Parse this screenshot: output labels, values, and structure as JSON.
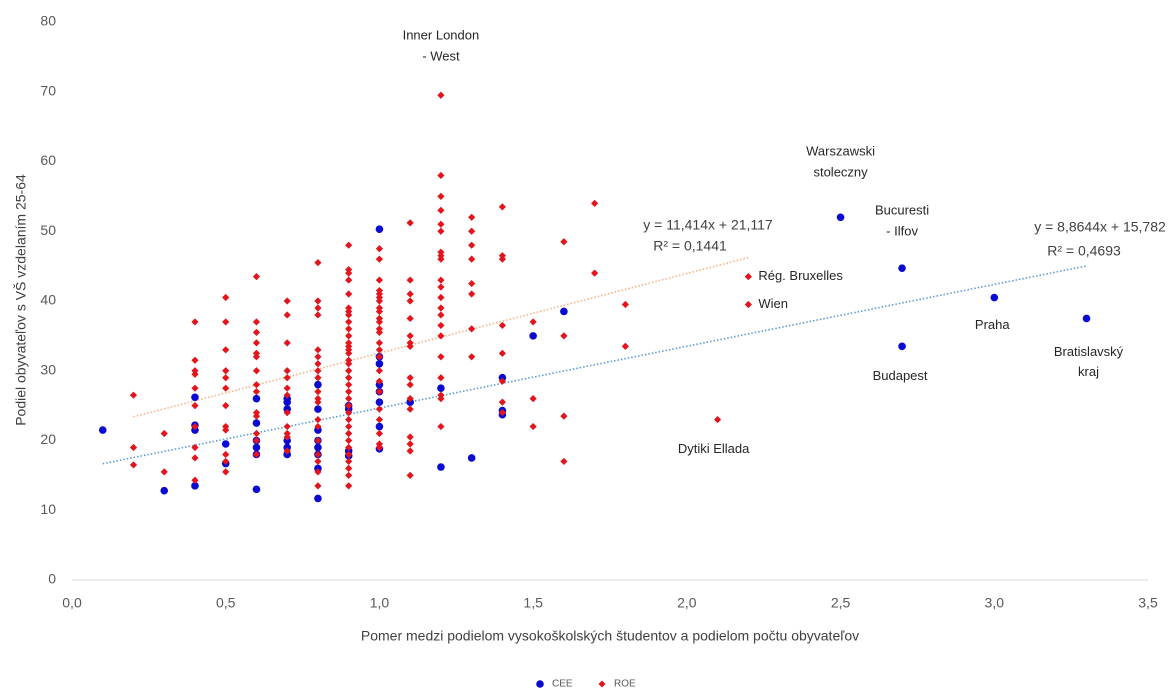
{
  "chart_data": {
    "type": "scatter",
    "x_label": "Pomer medzi podielom vysokoškolských študentov a podielom počtu obyvateľov",
    "y_label": "Podiel obyvateľov s VŠ vzdelaním 25-64",
    "xlim": [
      0,
      3.5
    ],
    "xticks": [
      {
        "value": 0,
        "label": "0,0"
      },
      {
        "value": 0.5,
        "label": "0,5"
      },
      {
        "value": 1,
        "label": "1,0"
      },
      {
        "value": 1.5,
        "label": "1,5"
      },
      {
        "value": 2,
        "label": "2,0"
      },
      {
        "value": 2.5,
        "label": "2,5"
      },
      {
        "value": 3,
        "label": "3,0"
      },
      {
        "value": 3.5,
        "label": "3,5"
      }
    ],
    "ylim": [
      0,
      80
    ],
    "yticks": [
      0,
      10,
      20,
      30,
      40,
      50,
      60,
      70,
      80
    ],
    "grid": false,
    "legend": "bottom",
    "series": [
      {
        "name": "CEE",
        "color": "#0a0ad2",
        "marker": "circle",
        "x": [
          0.1,
          0.3,
          0.4,
          0.4,
          0.4,
          0.4,
          0.5,
          0.5,
          0.6,
          0.6,
          0.6,
          0.6,
          0.6,
          0.6,
          0.7,
          0.7,
          0.7,
          0.7,
          0.7,
          0.7,
          0.8,
          0.8,
          0.8,
          0.8,
          0.8,
          0.8,
          0.8,
          0.8,
          0.9,
          0.9,
          0.9,
          0.9,
          1.0,
          1.0,
          1.0,
          1.0,
          1.0,
          1.0,
          1.0,
          1.0,
          1.1,
          1.2,
          1.2,
          1.3,
          1.4,
          1.4,
          1.4,
          1.5,
          1.6,
          2.5,
          2.7,
          2.7,
          3.0,
          3.3
        ],
        "values": [
          21.5,
          12.8,
          13.5,
          21.5,
          22.2,
          26.2,
          16.7,
          19.5,
          13,
          18,
          19,
          20,
          22.5,
          26,
          18,
          19,
          20,
          24.5,
          25.5,
          26,
          11.7,
          16,
          18,
          19,
          20,
          21.5,
          24.5,
          28,
          17.8,
          18.5,
          24.5,
          25,
          18.8,
          22,
          25.5,
          27,
          28,
          31,
          32,
          50.3,
          25.5,
          16.2,
          27.5,
          17.5,
          23.7,
          24.3,
          29,
          35,
          38.5,
          52,
          44.7,
          33.5,
          40.5,
          37.5
        ]
      },
      {
        "name": "ROE",
        "color": "#e3141c",
        "marker": "diamond",
        "x": [
          0.2,
          0.2,
          0.2,
          0.3,
          0.3,
          0.4,
          0.4,
          0.4,
          0.4,
          0.4,
          0.4,
          0.4,
          0.4,
          0.4,
          0.4,
          0.5,
          0.5,
          0.5,
          0.5,
          0.5,
          0.5,
          0.5,
          0.5,
          0.5,
          0.5,
          0.5,
          0.5,
          0.6,
          0.6,
          0.6,
          0.6,
          0.6,
          0.6,
          0.6,
          0.6,
          0.6,
          0.6,
          0.6,
          0.6,
          0.6,
          0.6,
          0.7,
          0.7,
          0.7,
          0.7,
          0.7,
          0.7,
          0.7,
          0.7,
          0.7,
          0.7,
          0.7,
          0.7,
          0.8,
          0.8,
          0.8,
          0.8,
          0.8,
          0.8,
          0.8,
          0.8,
          0.8,
          0.8,
          0.8,
          0.8,
          0.8,
          0.8,
          0.8,
          0.8,
          0.8,
          0.8,
          0.8,
          0.9,
          0.9,
          0.9,
          0.9,
          0.9,
          0.9,
          0.9,
          0.9,
          0.9,
          0.9,
          0.9,
          0.9,
          0.9,
          0.9,
          0.9,
          0.9,
          0.9,
          0.9,
          0.9,
          0.9,
          0.9,
          0.9,
          0.9,
          0.9,
          0.9,
          0.9,
          0.9,
          0.9,
          0.9,
          0.9,
          0.9,
          0.9,
          0.9,
          0.9,
          1.0,
          1.0,
          1.0,
          1.0,
          1.0,
          1.0,
          1.0,
          1.0,
          1.0,
          1.0,
          1.0,
          1.0,
          1.0,
          1.0,
          1.0,
          1.0,
          1.0,
          1.0,
          1.0,
          1.0,
          1.0,
          1.0,
          1.0,
          1.0,
          1.1,
          1.1,
          1.1,
          1.1,
          1.1,
          1.1,
          1.1,
          1.1,
          1.1,
          1.1,
          1.1,
          1.1,
          1.1,
          1.1,
          1.1,
          1.1,
          1.2,
          1.2,
          1.2,
          1.2,
          1.2,
          1.2,
          1.2,
          1.2,
          1.2,
          1.2,
          1.2,
          1.2,
          1.2,
          1.2,
          1.2,
          1.2,
          1.2,
          1.2,
          1.2,
          1.2,
          1.2,
          1.3,
          1.3,
          1.3,
          1.3,
          1.3,
          1.3,
          1.3,
          1.3,
          1.4,
          1.4,
          1.4,
          1.4,
          1.4,
          1.4,
          1.4,
          1.4,
          1.5,
          1.5,
          1.5,
          1.6,
          1.6,
          1.6,
          1.6,
          1.7,
          1.7,
          1.8,
          1.8,
          2.1,
          2.2,
          2.2
        ],
        "values": [
          26.5,
          19,
          16.5,
          21,
          15.5,
          37,
          31.5,
          30,
          29.5,
          27.5,
          25,
          22,
          19,
          17.5,
          14.3,
          40.5,
          37,
          33,
          30,
          29,
          27.5,
          25,
          22,
          21.5,
          18,
          17,
          15.5,
          43.5,
          37,
          35.5,
          34,
          32.5,
          32,
          30,
          28,
          27,
          24,
          23.5,
          21,
          20,
          18,
          40,
          38,
          34,
          30,
          29,
          27.5,
          26.5,
          24,
          22,
          21,
          20.5,
          18.5,
          45.5,
          40,
          39,
          38,
          33,
          32,
          31,
          30,
          29,
          27,
          26,
          25.5,
          23,
          22,
          20,
          18,
          17,
          15.5,
          13.5,
          48,
          44.5,
          44,
          43,
          41,
          39,
          38.5,
          38,
          37,
          36,
          35,
          34,
          33.5,
          33,
          32.5,
          31.5,
          31,
          30,
          29,
          28,
          27,
          26,
          25,
          24,
          23,
          22,
          21,
          20,
          19,
          18,
          17,
          16,
          15,
          13.5,
          47.5,
          46,
          43,
          41.5,
          41,
          40.5,
          40,
          39,
          38.5,
          37.5,
          37,
          36,
          35.5,
          34,
          33,
          32,
          30,
          28.5,
          27,
          24.5,
          23,
          21,
          19.5,
          19,
          51.2,
          43,
          41,
          40,
          37.5,
          35,
          34,
          33.5,
          29,
          28,
          26,
          24.5,
          20.5,
          19.5,
          18.5,
          15,
          69.5,
          58,
          55,
          53,
          51,
          50,
          47,
          46.5,
          46,
          43,
          42,
          40.5,
          39,
          38,
          36.5,
          35,
          32,
          29,
          26.5,
          26,
          22,
          52,
          50,
          48,
          46,
          42.5,
          41,
          36,
          32,
          53.5,
          46.5,
          46,
          36.5,
          32.5,
          28.5,
          25.5,
          24,
          37,
          26,
          22,
          48.5,
          35,
          23.5,
          17,
          54,
          44,
          39.5,
          33.5,
          23,
          43.5,
          39.5
        ]
      }
    ],
    "trendlines": [
      {
        "series": "ROE",
        "color": "#f4b183",
        "slope": 11.414,
        "intercept": 21.117,
        "x_range": [
          0.2,
          2.2
        ],
        "equation": "y = 11,414x + 21,117",
        "r2": "R² = 0,1441"
      },
      {
        "series": "CEE",
        "color": "#5b9bd5",
        "slope": 8.8644,
        "intercept": 15.782,
        "x_range": [
          0.1,
          3.3
        ],
        "equation": "y = 8,8644x + 15,782",
        "r2": "R² = 0,4693"
      }
    ],
    "annotations": [
      {
        "text": [
          "Inner London",
          "- West"
        ],
        "x": 1.2,
        "y": 69.5
      },
      {
        "text": [
          "Warszawski",
          "stoleczny"
        ],
        "x": 2.5,
        "y": 52
      },
      {
        "text": [
          "Bucuresti",
          "- Ilfov"
        ],
        "x": 2.7,
        "y": 44.7
      },
      {
        "text": [
          "Rég. Bruxelles"
        ],
        "x": 2.2,
        "y": 43.5
      },
      {
        "text": [
          "Wien"
        ],
        "x": 2.2,
        "y": 39.5
      },
      {
        "text": [
          "Dytiki Ellada"
        ],
        "x": 2.1,
        "y": 23
      },
      {
        "text": [
          "Praha"
        ],
        "x": 3.0,
        "y": 40.5
      },
      {
        "text": [
          "Budapest"
        ],
        "x": 2.7,
        "y": 33.5
      },
      {
        "text": [
          "Bratislavský",
          "kraj"
        ],
        "x": 3.3,
        "y": 37.5
      }
    ]
  }
}
